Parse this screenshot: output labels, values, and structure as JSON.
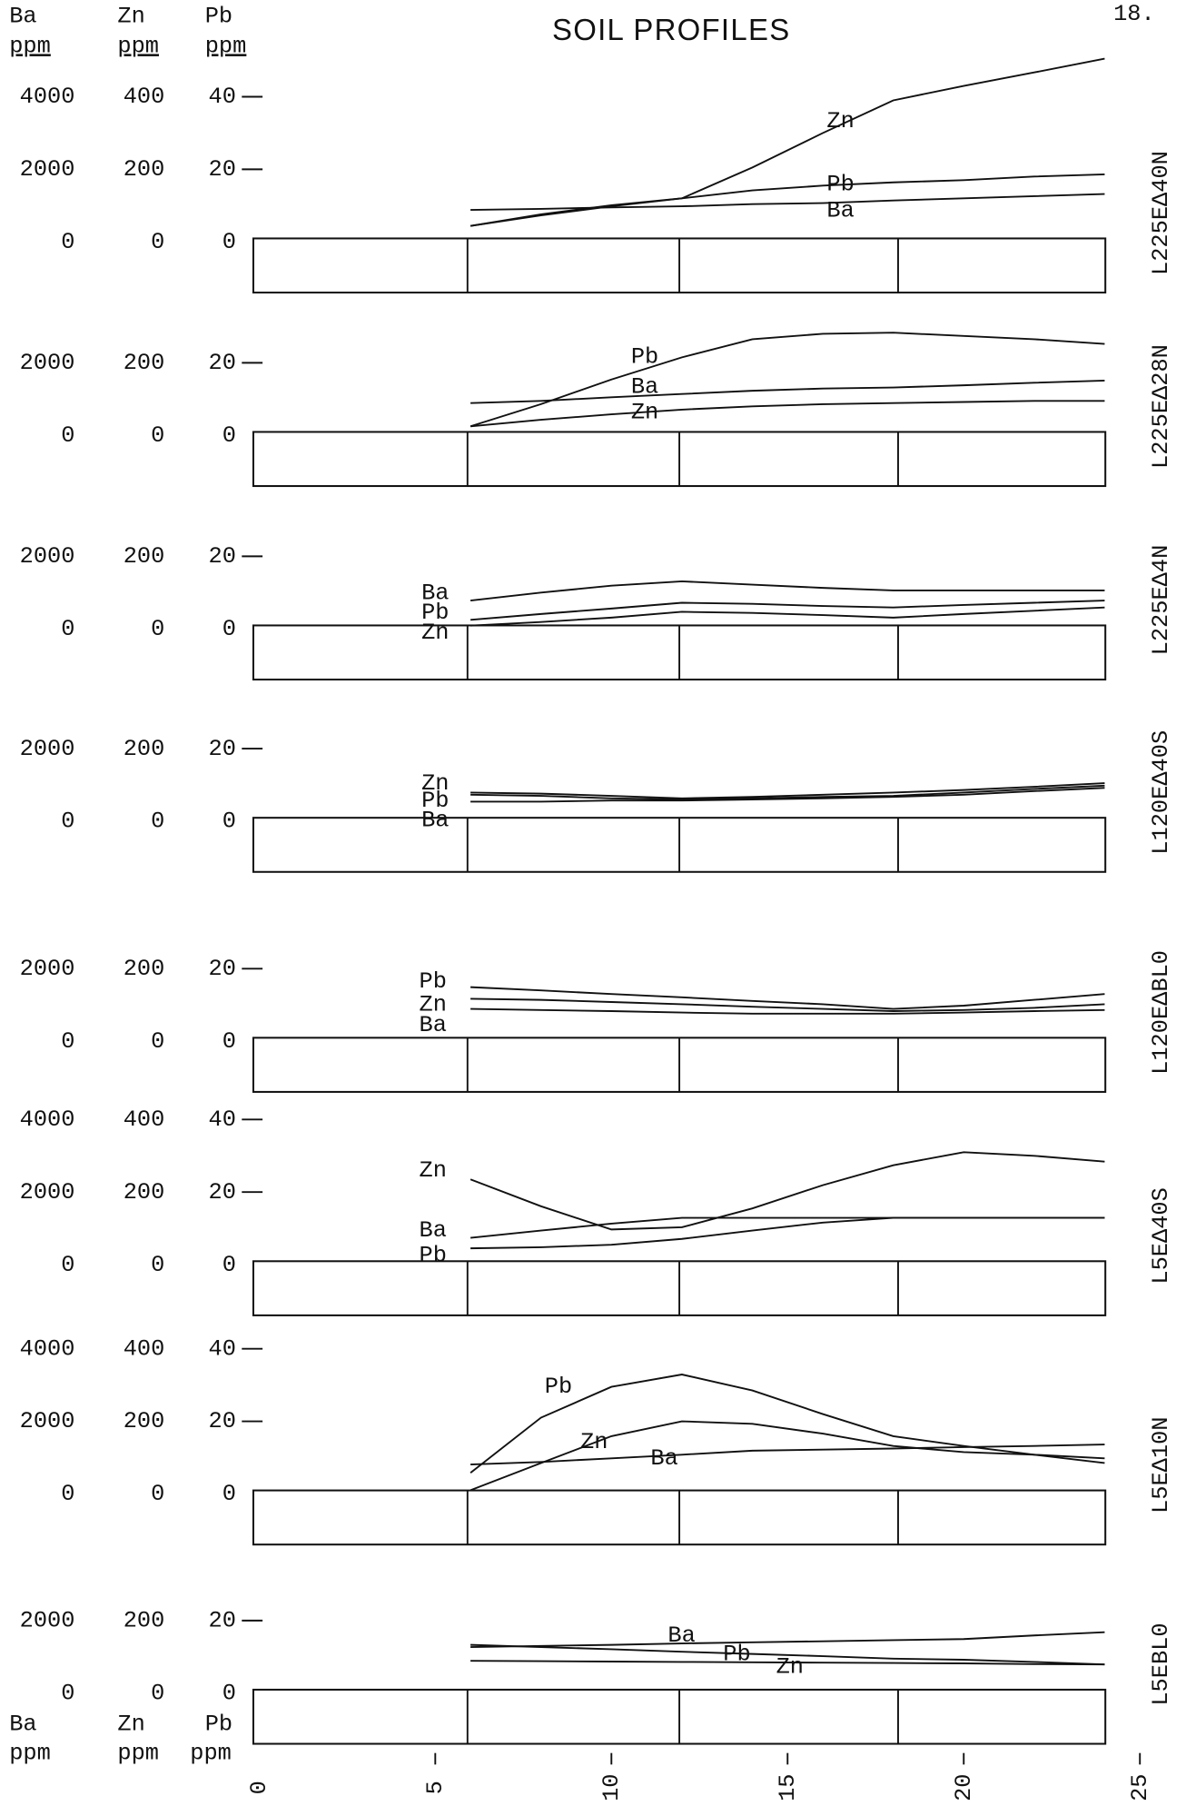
{
  "header": {
    "title": "SOIL PROFILES",
    "page_number": "18.",
    "units": [
      {
        "element": "Ba",
        "unit": "ppm"
      },
      {
        "element": "Zn",
        "unit": "ppm"
      },
      {
        "element": "Pb",
        "unit": "ppm"
      }
    ]
  },
  "footer": {
    "units": [
      {
        "element": "Ba",
        "unit": "ppm"
      },
      {
        "element": "Zn",
        "unit": "ppm"
      },
      {
        "element": "Pb",
        "unit": "ppm"
      }
    ]
  },
  "chart_data": [
    {
      "type": "line",
      "label": "L225EΔ40N",
      "x": [
        6,
        8,
        10,
        12,
        14,
        16,
        18,
        20,
        22,
        24
      ],
      "xlim": [
        0,
        25
      ],
      "ylim": [
        0,
        4000
      ],
      "yticks": [
        0,
        2000,
        4000
      ],
      "y2lim": [
        0,
        400
      ],
      "y2ticks": [
        0,
        200,
        400
      ],
      "y3lim": [
        0,
        40
      ],
      "y3ticks": [
        0,
        20,
        40
      ],
      "series": [
        {
          "name": "Ba",
          "axis": "y",
          "color": "#111111",
          "values": [
            880,
            910,
            950,
            980,
            1040,
            1070,
            1140,
            1200,
            1260,
            1320
          ]
        },
        {
          "name": "Zn",
          "axis": "y2",
          "color": "#111111",
          "values": [
            44,
            76,
            101,
            120,
            205,
            300,
            390,
            430,
            467,
            505
          ]
        },
        {
          "name": "Pb",
          "axis": "y3",
          "color": "#111111",
          "values": [
            4.4,
            7.3,
            9.8,
            12,
            14.2,
            15.5,
            16.4,
            17,
            18,
            18.6
          ]
        }
      ]
    },
    {
      "type": "line",
      "label": "L225EΔ28N",
      "x": [
        6,
        8,
        10,
        12,
        14,
        16,
        18,
        20,
        22,
        24
      ],
      "xlim": [
        0,
        25
      ],
      "ylim": [
        0,
        2000
      ],
      "yticks": [
        0,
        2000
      ],
      "y2lim": [
        0,
        200
      ],
      "y2ticks": [
        0,
        200
      ],
      "y3lim": [
        0,
        20
      ],
      "y3ticks": [
        0,
        20
      ],
      "series": [
        {
          "name": "Ba",
          "axis": "y",
          "color": "#111111",
          "values": [
            890,
            950,
            1050,
            1140,
            1230,
            1290,
            1320,
            1380,
            1450,
            1510
          ]
        },
        {
          "name": "Zn",
          "axis": "y2",
          "color": "#111111",
          "values": [
            25,
            43,
            58,
            71,
            80,
            86,
            89,
            92,
            95,
            95
          ]
        },
        {
          "name": "Pb",
          "axis": "y3",
          "color": "#111111",
          "values": [
            2.5,
            8.6,
            15.4,
            21.5,
            26.5,
            28,
            28.3,
            27.4,
            26.5,
            25.2
          ]
        }
      ]
    },
    {
      "type": "line",
      "label": "L225EΔ4N",
      "x": [
        6,
        8,
        10,
        12,
        14,
        16,
        18,
        20,
        22,
        24
      ],
      "xlim": [
        0,
        25
      ],
      "ylim": [
        0,
        2000
      ],
      "yticks": [
        0,
        2000
      ],
      "y2lim": [
        0,
        200
      ],
      "y2ticks": [
        0,
        200
      ],
      "y3lim": [
        0,
        20
      ],
      "y3ticks": [
        0,
        20
      ],
      "series": [
        {
          "name": "Ba",
          "axis": "y",
          "color": "#111111",
          "values": [
            780,
            1000,
            1190,
            1310,
            1220,
            1130,
            1060,
            1060,
            1060,
            1060
          ]
        },
        {
          "name": "Zn",
          "axis": "y2",
          "color": "#111111",
          "values": [
            9,
            19,
            31,
            47,
            44,
            38,
            31,
            41,
            50,
            59
          ]
        },
        {
          "name": "Pb",
          "axis": "y3",
          "color": "#111111",
          "values": [
            2.5,
            4.1,
            5.6,
            7.2,
            6.9,
            6.3,
            5.9,
            6.6,
            7.2,
            7.8
          ]
        }
      ]
    },
    {
      "type": "line",
      "label": "L120EΔ40S",
      "x": [
        6,
        8,
        10,
        12,
        14,
        16,
        18,
        20,
        22,
        24
      ],
      "xlim": [
        0,
        25
      ],
      "ylim": [
        0,
        2000
      ],
      "yticks": [
        0,
        2000
      ],
      "y2lim": [
        0,
        200
      ],
      "y2ticks": [
        0,
        200
      ],
      "y3lim": [
        0,
        20
      ],
      "y3ticks": [
        0,
        20
      ],
      "series": [
        {
          "name": "Ba",
          "axis": "y",
          "color": "#111111",
          "values": [
            540,
            540,
            570,
            570,
            600,
            630,
            670,
            730,
            830,
            920
          ]
        },
        {
          "name": "Zn",
          "axis": "y2",
          "color": "#111111",
          "values": [
            79,
            76,
            70,
            63,
            67,
            73,
            79,
            86,
            95,
            105
          ]
        },
        {
          "name": "Pb",
          "axis": "y3",
          "color": "#111111",
          "values": [
            7.3,
            7,
            6.3,
            6,
            6.3,
            6.7,
            7,
            7.9,
            8.9,
            9.8
          ]
        }
      ]
    },
    {
      "type": "line",
      "label": "L120EΔBL0",
      "x": [
        6,
        8,
        10,
        12,
        14,
        16,
        18,
        20,
        22,
        24
      ],
      "xlim": [
        0,
        25
      ],
      "ylim": [
        0,
        2000
      ],
      "yticks": [
        0,
        2000
      ],
      "y2lim": [
        0,
        200
      ],
      "y2ticks": [
        0,
        200
      ],
      "y3lim": [
        0,
        20
      ],
      "y3ticks": [
        0,
        20
      ],
      "series": [
        {
          "name": "Ba",
          "axis": "y",
          "color": "#111111",
          "values": [
            890,
            860,
            830,
            790,
            760,
            760,
            760,
            790,
            830,
            860
          ]
        },
        {
          "name": "Zn",
          "axis": "y2",
          "color": "#111111",
          "values": [
            117,
            114,
            108,
            102,
            95,
            89,
            83,
            86,
            92,
            102
          ]
        },
        {
          "name": "Pb",
          "axis": "y3",
          "color": "#111111",
          "values": [
            14.9,
            14,
            13,
            12.1,
            11.1,
            10.2,
            8.9,
            9.8,
            11.4,
            13
          ]
        }
      ]
    },
    {
      "type": "line",
      "label": "L5EΔ40S",
      "x": [
        6,
        8,
        10,
        12,
        14,
        16,
        18,
        20,
        22,
        24
      ],
      "xlim": [
        0,
        25
      ],
      "ylim": [
        0,
        4000
      ],
      "yticks": [
        0,
        2000,
        4000
      ],
      "y2lim": [
        0,
        400
      ],
      "y2ticks": [
        0,
        200,
        400
      ],
      "y3lim": [
        0,
        40
      ],
      "y3ticks": [
        0,
        20,
        40
      ],
      "series": [
        {
          "name": "Ba",
          "axis": "y",
          "color": "#111111",
          "values": [
            740,
            940,
            1130,
            1290,
            1290,
            1290,
            1290,
            1290,
            1290,
            1290
          ]
        },
        {
          "name": "Zn",
          "axis": "y2",
          "color": "#111111",
          "values": [
            235,
            161,
            97,
            103,
            155,
            219,
            274,
            310,
            300,
            284
          ]
        },
        {
          "name": "Pb",
          "axis": "y3",
          "color": "#111111",
          "values": [
            4.5,
            4.8,
            5.5,
            7.1,
            9.4,
            11.6,
            12.9,
            12.9,
            12.9,
            12.9
          ]
        }
      ]
    },
    {
      "type": "line",
      "label": "L5EΔ10N",
      "x": [
        6,
        8,
        10,
        12,
        14,
        16,
        18,
        20,
        22,
        24
      ],
      "xlim": [
        0,
        25
      ],
      "ylim": [
        0,
        4000
      ],
      "yticks": [
        0,
        2000,
        4000
      ],
      "y2lim": [
        0,
        400
      ],
      "y2ticks": [
        0,
        200,
        400
      ],
      "y3lim": [
        0,
        40
      ],
      "y3ticks": [
        0,
        20,
        40
      ],
      "series": [
        {
          "name": "Ba",
          "axis": "y",
          "color": "#111111",
          "values": [
            810,
            880,
            980,
            1080,
            1190,
            1220,
            1250,
            1290,
            1320,
            1360
          ]
        },
        {
          "name": "Zn",
          "axis": "y2",
          "color": "#111111",
          "values": [
            10,
            85,
            159,
            200,
            193,
            166,
            132,
            115,
            108,
            98
          ]
        },
        {
          "name": "Pb",
          "axis": "y3",
          "color": "#111111",
          "values": [
            5.8,
            21,
            29.5,
            32.9,
            28.5,
            22,
            15.9,
            13.2,
            10.8,
            8.5
          ]
        }
      ]
    },
    {
      "type": "line",
      "label": "L5EBL0",
      "x": [
        6,
        8,
        10,
        12,
        14,
        16,
        18,
        20,
        22,
        24
      ],
      "xlim": [
        0,
        25
      ],
      "xticks": [
        0,
        5,
        10,
        15,
        20,
        25
      ],
      "ylim": [
        0,
        2000
      ],
      "yticks": [
        0,
        2000
      ],
      "y2lim": [
        0,
        200
      ],
      "y2ticks": [
        0,
        200
      ],
      "y3lim": [
        0,
        20
      ],
      "y3ticks": [
        0,
        20
      ],
      "series": [
        {
          "name": "Ba",
          "axis": "y",
          "color": "#111111",
          "values": [
            1270,
            1300,
            1330,
            1370,
            1400,
            1430,
            1460,
            1490,
            1590,
            1680
          ]
        },
        {
          "name": "Zn",
          "axis": "y2",
          "color": "#111111",
          "values": [
            89,
            88,
            87,
            86,
            85,
            84,
            83,
            82,
            80,
            79
          ]
        },
        {
          "name": "Pb",
          "axis": "y3",
          "color": "#111111",
          "values": [
            13.3,
            12.7,
            12.1,
            11.4,
            10.8,
            10.2,
            9.5,
            9.2,
            8.6,
            7.9
          ]
        }
      ]
    }
  ]
}
